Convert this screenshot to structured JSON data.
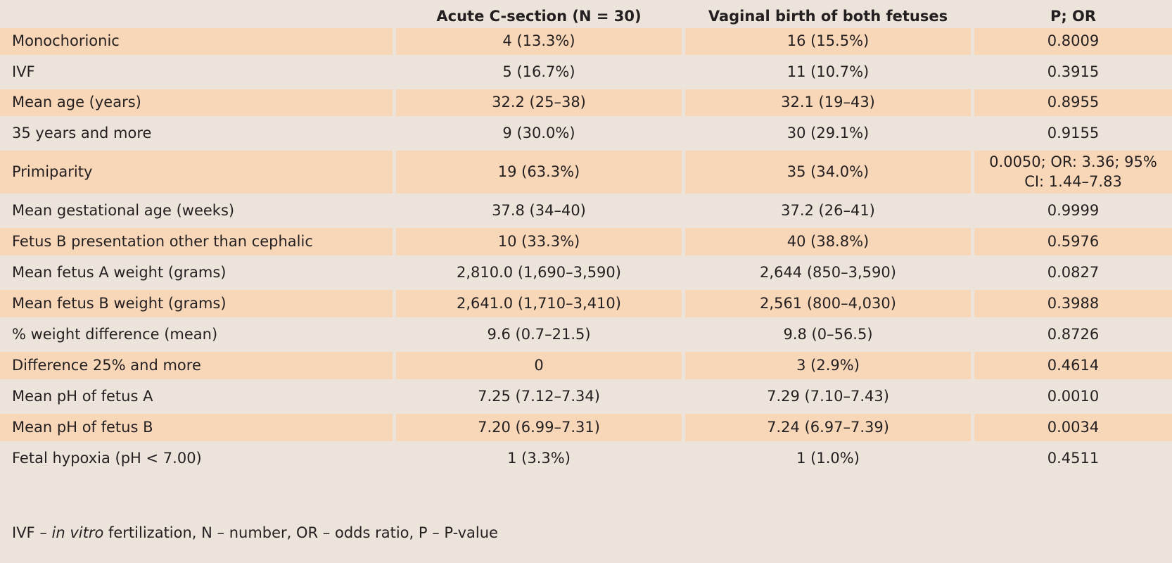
{
  "table": {
    "headers": [
      "",
      "Acute C-section (N = 30)",
      "Vaginal birth of both fetuses",
      "P; OR"
    ],
    "rows": [
      [
        "Monochorionic",
        "4 (13.3%)",
        "16 (15.5%)",
        "0.8009"
      ],
      [
        "IVF",
        "5 (16.7%)",
        "11 (10.7%)",
        "0.3915"
      ],
      [
        "Mean age (years)",
        "32.2 (25–38)",
        "32.1 (19–43)",
        "0.8955"
      ],
      [
        "35 years and more",
        "9 (30.0%)",
        "30 (29.1%)",
        "0.9155"
      ],
      [
        "Primiparity",
        "19 (63.3%)",
        "35 (34.0%)",
        "0.0050; OR: 3.36; 95% CI: 1.44–7.83"
      ],
      [
        "Mean gestational age (weeks)",
        "37.8 (34–40)",
        "37.2 (26–41)",
        "0.9999"
      ],
      [
        "Fetus B presentation other than cephalic",
        "10 (33.3%)",
        "40 (38.8%)",
        "0.5976"
      ],
      [
        "Mean fetus A weight (grams)",
        "2,810.0 (1,690–3,590)",
        "2,644 (850–3,590)",
        "0.0827"
      ],
      [
        "Mean fetus B weight (grams)",
        "2,641.0 (1,710–3,410)",
        "2,561 (800–4,030)",
        "0.3988"
      ],
      [
        "% weight difference (mean)",
        "9.6 (0.7–21.5)",
        "9.8 (0–56.5)",
        "0.8726"
      ],
      [
        "Difference 25% and more",
        "0",
        "3 (2.9%)",
        "0.4614"
      ],
      [
        "Mean pH of fetus A",
        "7.25 (7.12–7.34)",
        "7.29 (7.10–7.43)",
        "0.0010"
      ],
      [
        "Mean pH of fetus B",
        "7.20 (6.99–7.31)",
        "7.24 (6.97–7.39)",
        "0.0034"
      ],
      [
        "Fetal hypoxia (pH < 7.00)",
        "1 (3.3%)",
        "1 (1.0%)",
        "0.4511"
      ]
    ]
  },
  "footnote": {
    "prefix": "IVF – ",
    "italic": "in vitro",
    "suffix": " fertilization, N – number, OR – odds ratio, P – P-value"
  },
  "colors": {
    "panel_background": "#ece4da",
    "shaded_row": "#f8d7b9",
    "text": "#231f20"
  }
}
